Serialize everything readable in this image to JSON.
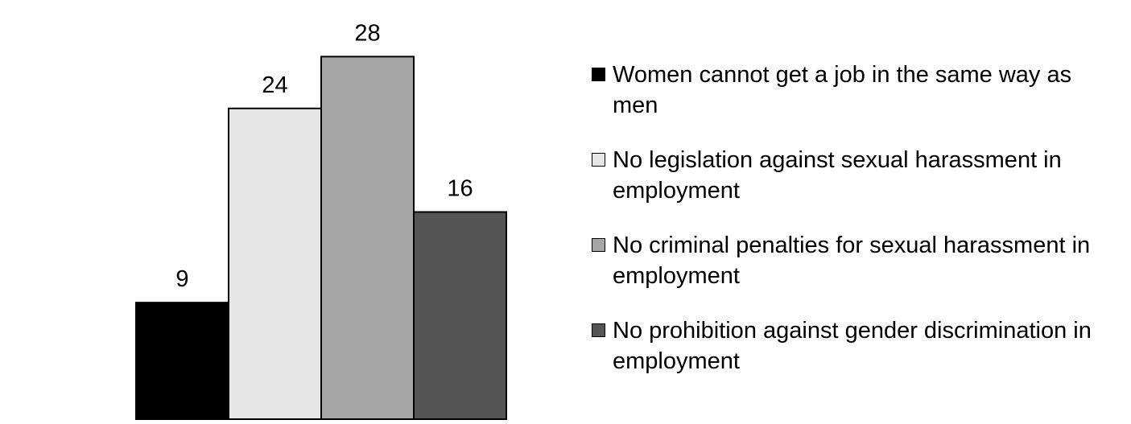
{
  "chart_data": {
    "type": "bar",
    "categories": [
      "Women cannot get a job in the same way as men",
      "No legislation against sexual harassment in employment",
      "No criminal penalties for sexual harassment in employment",
      "No prohibition against gender discrimination in employment"
    ],
    "values": [
      9,
      24,
      28,
      16
    ],
    "data_labels": [
      "9",
      "24",
      "28",
      "16"
    ],
    "colors": [
      "#000000",
      "#e6e6e6",
      "#a6a6a6",
      "#555555"
    ],
    "title": "",
    "xlabel": "",
    "ylabel": "",
    "ylim": [
      0,
      32
    ],
    "grid": false,
    "legend": "right"
  }
}
